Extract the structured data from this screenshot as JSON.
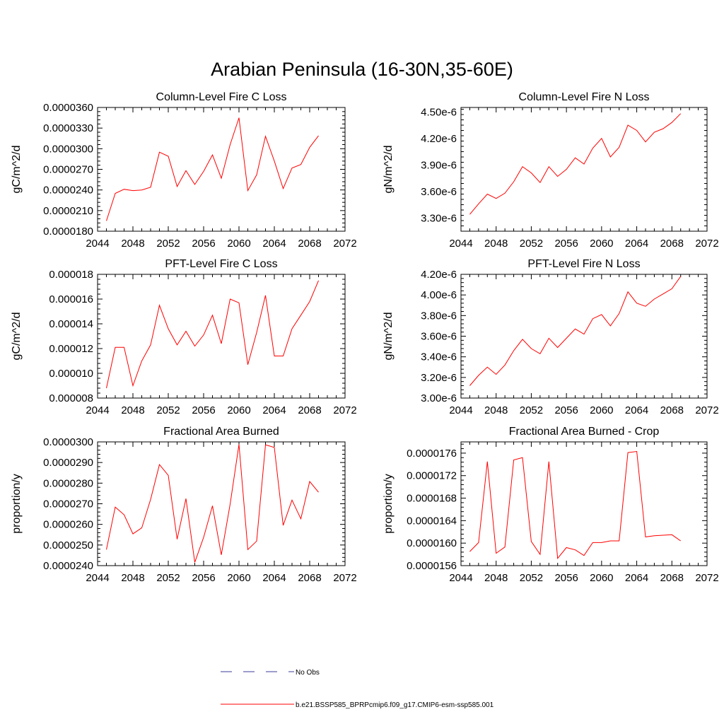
{
  "figure": {
    "title": "Arabian Peninsula (16-30N,35-60E)",
    "legend": [
      {
        "label": "No Obs",
        "color": "#3b3b9a",
        "dash": "dashed"
      },
      {
        "label": "b.e21.BSSP585_BPRPcmip6.f09_g17.CMIP6-esm-ssp585.001",
        "color": "#ff0000",
        "dash": "solid"
      }
    ]
  },
  "chart_data": [
    {
      "type": "line",
      "title": "Column-Level Fire C Loss",
      "ylabel": "gC/m^2/d",
      "xlim": [
        2044,
        2072
      ],
      "ylim": [
        1.8e-05,
        3.6e-05
      ],
      "xticks": [
        "2044",
        "2048",
        "2052",
        "2056",
        "2060",
        "2064",
        "2068",
        "2072"
      ],
      "yticks": [
        "0.0000180",
        "0.0000210",
        "0.0000240",
        "0.0000270",
        "0.0000300",
        "0.0000330",
        "0.0000360"
      ],
      "ytick_values": [
        1.8e-05,
        2.1e-05,
        2.4e-05,
        2.7e-05,
        3e-05,
        3.3e-05,
        3.6e-05
      ],
      "series": [
        {
          "color": "#ff0000",
          "x": [
            2045,
            2046,
            2047,
            2048,
            2049,
            2050,
            2051,
            2052,
            2053,
            2054,
            2055,
            2056,
            2057,
            2058,
            2059,
            2060,
            2061,
            2062,
            2063,
            2064,
            2065,
            2066,
            2067,
            2068,
            2069
          ],
          "y": [
            1.95e-05,
            2.35e-05,
            2.41e-05,
            2.39e-05,
            2.4e-05,
            2.44e-05,
            2.95e-05,
            2.89e-05,
            2.45e-05,
            2.68e-05,
            2.48e-05,
            2.67e-05,
            2.91e-05,
            2.57e-05,
            3.06e-05,
            3.45e-05,
            2.39e-05,
            2.62e-05,
            3.18e-05,
            2.82e-05,
            2.42e-05,
            2.72e-05,
            2.77e-05,
            3.02e-05,
            3.19e-05
          ]
        }
      ]
    },
    {
      "type": "line",
      "title": "Column-Level Fire N Loss",
      "ylabel": "gN/m^2/d",
      "xlim": [
        2044,
        2072
      ],
      "ylim": [
        3.15e-06,
        4.55e-06
      ],
      "xticks": [
        "2044",
        "2048",
        "2052",
        "2056",
        "2060",
        "2064",
        "2068",
        "2072"
      ],
      "yticks": [
        "3.30e-6",
        "3.60e-6",
        "3.90e-6",
        "4.20e-6",
        "4.50e-6"
      ],
      "ytick_values": [
        3.3e-06,
        3.6e-06,
        3.9e-06,
        4.2e-06,
        4.5e-06
      ],
      "series": [
        {
          "color": "#ff0000",
          "x": [
            2045,
            2046,
            2047,
            2048,
            2049,
            2050,
            2051,
            2052,
            2053,
            2054,
            2055,
            2056,
            2057,
            2058,
            2059,
            2060,
            2061,
            2062,
            2063,
            2064,
            2065,
            2066,
            2067,
            2068,
            2069
          ],
          "y": [
            3.34e-06,
            3.46e-06,
            3.57e-06,
            3.52e-06,
            3.58e-06,
            3.71e-06,
            3.88e-06,
            3.81e-06,
            3.7e-06,
            3.88e-06,
            3.77e-06,
            3.85e-06,
            3.98e-06,
            3.91e-06,
            4.09e-06,
            4.2e-06,
            3.99e-06,
            4.1e-06,
            4.35e-06,
            4.29e-06,
            4.16e-06,
            4.27e-06,
            4.31e-06,
            4.38e-06,
            4.48e-06
          ]
        }
      ]
    },
    {
      "type": "line",
      "title": "PFT-Level Fire C Loss",
      "ylabel": "gC/m^2/d",
      "xlim": [
        2044,
        2072
      ],
      "ylim": [
        8e-06,
        1.8e-05
      ],
      "xticks": [
        "2044",
        "2048",
        "2052",
        "2056",
        "2060",
        "2064",
        "2068",
        "2072"
      ],
      "yticks": [
        "0.000008",
        "0.000010",
        "0.000012",
        "0.000014",
        "0.000016",
        "0.000018"
      ],
      "ytick_values": [
        8e-06,
        1e-05,
        1.2e-05,
        1.4e-05,
        1.6e-05,
        1.8e-05
      ],
      "series": [
        {
          "color": "#ff0000",
          "x": [
            2045,
            2046,
            2047,
            2048,
            2049,
            2050,
            2051,
            2052,
            2053,
            2054,
            2055,
            2056,
            2057,
            2058,
            2059,
            2060,
            2061,
            2062,
            2063,
            2064,
            2065,
            2066,
            2067,
            2068,
            2069
          ],
          "y": [
            8.8e-06,
            1.21e-05,
            1.21e-05,
            9e-06,
            1.1e-05,
            1.23e-05,
            1.55e-05,
            1.36e-05,
            1.23e-05,
            1.34e-05,
            1.22e-05,
            1.31e-05,
            1.47e-05,
            1.24e-05,
            1.6e-05,
            1.57e-05,
            1.07e-05,
            1.33e-05,
            1.63e-05,
            1.14e-05,
            1.14e-05,
            1.36e-05,
            1.47e-05,
            1.58e-05,
            1.75e-05
          ]
        }
      ]
    },
    {
      "type": "line",
      "title": "PFT-Level Fire N Loss",
      "ylabel": "gN/m^2/d",
      "xlim": [
        2044,
        2072
      ],
      "ylim": [
        3e-06,
        4.2e-06
      ],
      "xticks": [
        "2044",
        "2048",
        "2052",
        "2056",
        "2060",
        "2064",
        "2068",
        "2072"
      ],
      "yticks": [
        "3.00e-6",
        "3.20e-6",
        "3.40e-6",
        "3.60e-6",
        "3.80e-6",
        "4.00e-6",
        "4.20e-6"
      ],
      "ytick_values": [
        3e-06,
        3.2e-06,
        3.4e-06,
        3.6e-06,
        3.8e-06,
        4e-06,
        4.2e-06
      ],
      "series": [
        {
          "color": "#ff0000",
          "x": [
            2045,
            2046,
            2047,
            2048,
            2049,
            2050,
            2051,
            2052,
            2053,
            2054,
            2055,
            2056,
            2057,
            2058,
            2059,
            2060,
            2061,
            2062,
            2063,
            2064,
            2065,
            2066,
            2067,
            2068,
            2069
          ],
          "y": [
            3.12e-06,
            3.22e-06,
            3.3e-06,
            3.23e-06,
            3.32e-06,
            3.46e-06,
            3.57e-06,
            3.48e-06,
            3.43e-06,
            3.58e-06,
            3.49e-06,
            3.58e-06,
            3.67e-06,
            3.62e-06,
            3.77e-06,
            3.81e-06,
            3.7e-06,
            3.82e-06,
            4.03e-06,
            3.92e-06,
            3.89e-06,
            3.96e-06,
            4.01e-06,
            4.06e-06,
            4.18e-06
          ]
        }
      ]
    },
    {
      "type": "line",
      "title": "Fractional Area Burned",
      "ylabel": "proportion/y",
      "xlim": [
        2044,
        2072
      ],
      "ylim": [
        2.4e-05,
        3e-05
      ],
      "xticks": [
        "2044",
        "2048",
        "2052",
        "2056",
        "2060",
        "2064",
        "2068",
        "2072"
      ],
      "yticks": [
        "0.0000240",
        "0.0000250",
        "0.0000260",
        "0.0000270",
        "0.0000280",
        "0.0000290",
        "0.0000300"
      ],
      "ytick_values": [
        2.4e-05,
        2.5e-05,
        2.6e-05,
        2.7e-05,
        2.8e-05,
        2.9e-05,
        3e-05
      ],
      "series": [
        {
          "color": "#ff0000",
          "x": [
            2045,
            2046,
            2047,
            2048,
            2049,
            2050,
            2051,
            2052,
            2053,
            2054,
            2055,
            2056,
            2057,
            2058,
            2059,
            2060,
            2061,
            2062,
            2063,
            2064,
            2065,
            2066,
            2067,
            2068,
            2069
          ],
          "y": [
            2.478e-05,
            2.684e-05,
            2.647e-05,
            2.554e-05,
            2.583e-05,
            2.721e-05,
            2.89e-05,
            2.838e-05,
            2.528e-05,
            2.725e-05,
            2.416e-05,
            2.537e-05,
            2.69e-05,
            2.452e-05,
            2.698e-05,
            2.988e-05,
            2.478e-05,
            2.519e-05,
            2.986e-05,
            2.973e-05,
            2.595e-05,
            2.718e-05,
            2.627e-05,
            2.808e-05,
            2.756e-05
          ]
        }
      ]
    },
    {
      "type": "line",
      "title": "Fractional Area Burned - Crop",
      "ylabel": "proportion/y",
      "xlim": [
        2044,
        2072
      ],
      "ylim": [
        1.56e-05,
        1.78e-05
      ],
      "xticks": [
        "2044",
        "2048",
        "2052",
        "2056",
        "2060",
        "2064",
        "2068",
        "2072"
      ],
      "yticks": [
        "0.0000156",
        "0.0000160",
        "0.0000164",
        "0.0000168",
        "0.0000172",
        "0.0000176"
      ],
      "ytick_values": [
        1.56e-05,
        1.6e-05,
        1.64e-05,
        1.68e-05,
        1.72e-05,
        1.76e-05
      ],
      "series": [
        {
          "color": "#ff0000",
          "x": [
            2045,
            2046,
            2047,
            2048,
            2049,
            2050,
            2051,
            2052,
            2053,
            2054,
            2055,
            2056,
            2057,
            2058,
            2059,
            2060,
            2061,
            2062,
            2063,
            2064,
            2065,
            2066,
            2067,
            2068,
            2069
          ],
          "y": [
            1.585e-05,
            1.601e-05,
            1.745e-05,
            1.582e-05,
            1.593e-05,
            1.748e-05,
            1.752e-05,
            1.603e-05,
            1.58e-05,
            1.745e-05,
            1.573e-05,
            1.592e-05,
            1.588e-05,
            1.578e-05,
            1.601e-05,
            1.601e-05,
            1.604e-05,
            1.604e-05,
            1.761e-05,
            1.763e-05,
            1.611e-05,
            1.613e-05,
            1.614e-05,
            1.615e-05,
            1.604e-05
          ]
        }
      ]
    }
  ]
}
